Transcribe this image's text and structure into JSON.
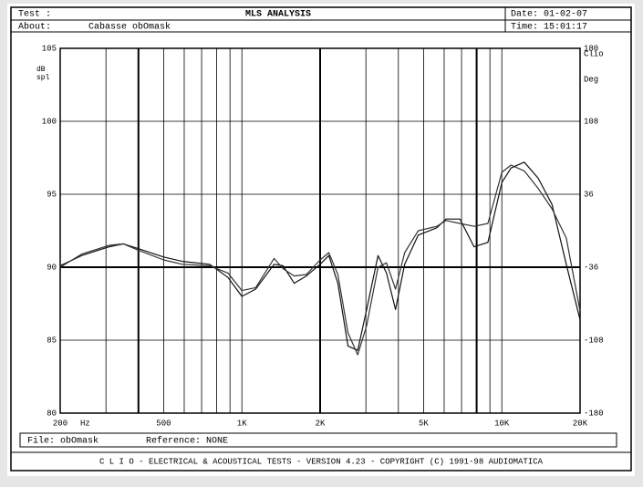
{
  "header": {
    "test": "Test :",
    "about": "About:",
    "subject": "Cabasse obOmask",
    "date": "Date: 01-02-07",
    "time": "Time: 15:01:17"
  },
  "footer": {
    "file": "File: obOmask",
    "reference": "Reference: NONE",
    "copyright": "C L I O  -  ELECTRICAL & ACOUSTICAL TESTS  -  VERSION 4.23  -  COPYRIGHT (C) 1991-98 AUDIOMATICA"
  },
  "chart_data": {
    "type": "line",
    "title": "MLS ANALYSIS",
    "ylabel": [
      "dB",
      "spl"
    ],
    "y2label": [
      "Clio",
      "Deg"
    ],
    "xlabel": "Hz",
    "xscale": "log",
    "xlim": [
      200,
      20000
    ],
    "xticks": [
      200,
      500,
      {
        "value": 1000,
        "label": "1K"
      },
      {
        "value": 2000,
        "label": "2K"
      },
      {
        "value": 5000,
        "label": "5K"
      },
      {
        "value": 10000,
        "label": "10K"
      },
      {
        "value": 20000,
        "label": "20K"
      }
    ],
    "xgrid": [
      300,
      400,
      500,
      600,
      700,
      800,
      900,
      1000,
      2000,
      3000,
      4000,
      5000,
      6000,
      7000,
      8000,
      9000,
      10000
    ],
    "cursors": [
      400,
      2000,
      8000
    ],
    "ylim": [
      80,
      105
    ],
    "yticks": [
      80,
      85,
      90,
      95,
      100,
      105
    ],
    "reference_line": 90,
    "y2lim": [
      -180,
      180
    ],
    "y2ticks": [
      -180,
      -108,
      -36,
      36,
      108,
      180
    ],
    "grid": true,
    "x": [
      200,
      242,
      309,
      350,
      395,
      500,
      590,
      752,
      884,
      1000,
      1130,
      1330,
      1440,
      1590,
      1770,
      2000,
      2160,
      2340,
      2560,
      2790,
      3020,
      3340,
      3600,
      3900,
      4230,
      4770,
      5620,
      6100,
      6900,
      7820,
      8840,
      10000,
      10850,
      12200,
      13800,
      15600,
      17700,
      20000
    ],
    "series": [
      {
        "color": "#111111",
        "values": [
          90.1,
          90.8,
          91.4,
          91.6,
          91.3,
          90.7,
          90.4,
          90.2,
          89.3,
          88.0,
          88.5,
          90.2,
          90.1,
          88.9,
          89.4,
          90.2,
          90.8,
          88.9,
          84.6,
          84.3,
          87.1,
          90.8,
          89.6,
          87.1,
          90.2,
          92.2,
          92.7,
          93.3,
          93.3,
          91.4,
          91.7,
          95.8,
          96.8,
          97.2,
          96.1,
          94.3,
          90.2,
          86.4
        ]
      },
      {
        "color": "#333333",
        "values": [
          90.0,
          90.9,
          91.5,
          91.6,
          91.2,
          90.5,
          90.2,
          90.1,
          89.6,
          88.4,
          88.6,
          90.6,
          89.9,
          89.4,
          89.5,
          90.5,
          91.0,
          89.5,
          85.5,
          84.0,
          86.0,
          90.0,
          90.3,
          88.5,
          91.0,
          92.5,
          92.8,
          93.2,
          93.0,
          92.8,
          93.0,
          96.5,
          97.0,
          96.6,
          95.4,
          94.0,
          92.0,
          87.0
        ]
      }
    ]
  }
}
